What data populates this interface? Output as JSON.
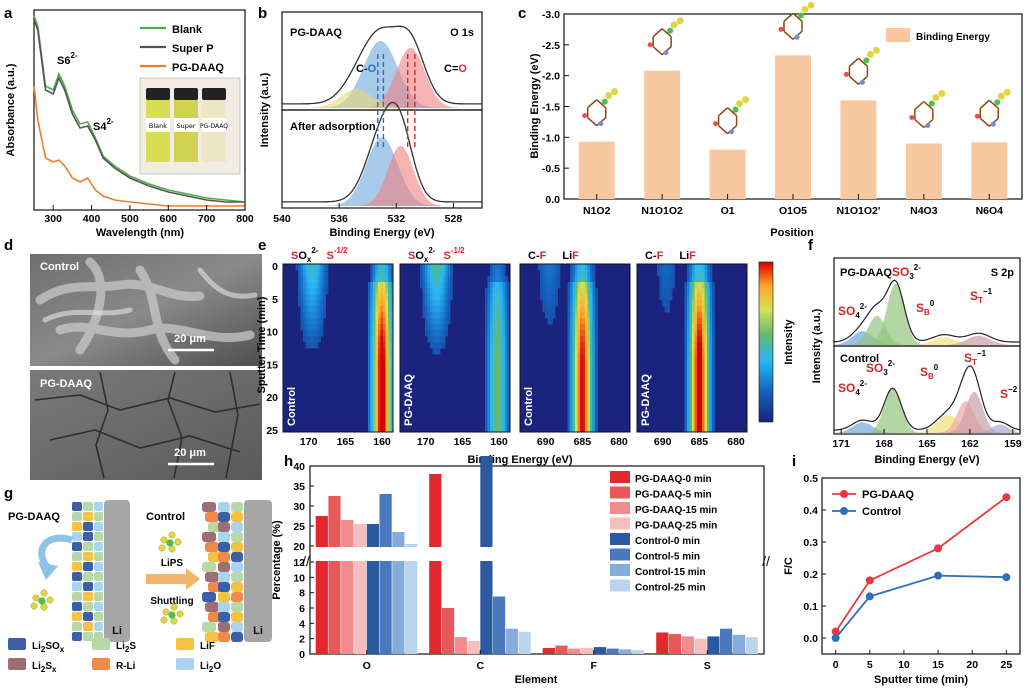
{
  "panel_labels": [
    "a",
    "b",
    "c",
    "d",
    "e",
    "f",
    "g",
    "h",
    "i"
  ],
  "chart_data": [
    {
      "id": "a",
      "type": "line",
      "xlabel": "Wavelength (nm)",
      "ylabel": "Absorbance (a.u.)",
      "xlim": [
        250,
        800
      ],
      "xticks": [
        300,
        400,
        500,
        600,
        700,
        800
      ],
      "annotations": [
        "S6",
        "2-",
        "S4",
        "2-"
      ],
      "legend": [
        "Blank",
        "Super P",
        "PG-DAAQ"
      ],
      "legend_colors": [
        "#4daf4a",
        "#555555",
        "#f07c2a"
      ],
      "vial_labels": [
        "Blank",
        "Super",
        "PG-DAAQ"
      ],
      "series": [
        {
          "name": "Blank",
          "x": [
            250,
            260,
            280,
            300,
            315,
            330,
            350,
            370,
            390,
            410,
            430,
            460,
            500,
            550,
            600,
            650,
            700,
            750,
            800
          ],
          "y": [
            0.97,
            0.92,
            0.62,
            0.6,
            0.68,
            0.62,
            0.5,
            0.43,
            0.44,
            0.36,
            0.27,
            0.22,
            0.17,
            0.13,
            0.1,
            0.08,
            0.06,
            0.05,
            0.04
          ]
        },
        {
          "name": "Super P",
          "x": [
            250,
            260,
            280,
            300,
            315,
            330,
            350,
            370,
            390,
            410,
            430,
            460,
            500,
            550,
            600,
            650,
            700,
            750,
            800
          ],
          "y": [
            0.95,
            0.9,
            0.6,
            0.58,
            0.66,
            0.6,
            0.48,
            0.41,
            0.42,
            0.35,
            0.26,
            0.21,
            0.16,
            0.12,
            0.09,
            0.07,
            0.05,
            0.04,
            0.04
          ]
        },
        {
          "name": "PG-DAAQ",
          "x": [
            250,
            260,
            280,
            300,
            315,
            330,
            350,
            370,
            390,
            410,
            430,
            460,
            500,
            550,
            600,
            650,
            700,
            750,
            800
          ],
          "y": [
            0.62,
            0.45,
            0.26,
            0.24,
            0.25,
            0.22,
            0.16,
            0.14,
            0.16,
            0.1,
            0.07,
            0.05,
            0.04,
            0.03,
            0.02,
            0.02,
            0.02,
            0.02,
            0.02
          ]
        }
      ]
    },
    {
      "id": "b",
      "type": "line",
      "title_left": "PG-DAAQ",
      "title_right": "O 1s",
      "lower_title": "After adsorption",
      "xlabel": "Binding Energy (eV)",
      "ylabel": "Intensity (a.u.)",
      "xlim": [
        540,
        526
      ],
      "xticks": [
        540,
        536,
        532,
        528
      ],
      "peak_labels": [
        "C-",
        "O",
        "C=",
        "O"
      ],
      "top_peaks": [
        {
          "name": "C-O",
          "center": 533.1,
          "height": 0.78,
          "width": 1.2,
          "color": "#6fa8dc"
        },
        {
          "name": "C=O",
          "center": 531.0,
          "height": 0.7,
          "width": 1.0,
          "color": "#f08080"
        },
        {
          "name": "other",
          "center": 534.8,
          "height": 0.22,
          "width": 1.1,
          "color": "#e8d870"
        }
      ],
      "bottom_peaks": [
        {
          "name": "C-O",
          "center": 533.0,
          "height": 0.8,
          "width": 1.1,
          "color": "#6fa8dc"
        },
        {
          "name": "C=O",
          "center": 531.7,
          "height": 0.7,
          "width": 0.9,
          "color": "#f08080"
        }
      ],
      "dashed_blue": [
        533.3,
        532.9
      ],
      "dashed_red": [
        531.2,
        530.7
      ]
    },
    {
      "id": "c",
      "type": "bar",
      "xlabel": "Position",
      "ylabel": "Binding Energy (eV)",
      "ylim": [
        -3.0,
        0.0
      ],
      "yticks": [
        -3.0,
        -2.5,
        -2.0,
        -1.5,
        -1.0,
        -0.5,
        0.0
      ],
      "legend": [
        "Binding Energy"
      ],
      "bar_color": "#f8c9a0",
      "categories": [
        "N1O2",
        "N1O1O2",
        "O1",
        "O1O5",
        "N1O1O2'",
        "N4O3",
        "N6O4"
      ],
      "values": [
        -0.93,
        -2.08,
        -0.8,
        -2.33,
        -1.6,
        -0.9,
        -0.92
      ]
    },
    {
      "id": "d",
      "type": "image",
      "labels": [
        "Control",
        "PG-DAAQ"
      ],
      "scalebars": [
        "20 μm",
        "20 μm"
      ]
    },
    {
      "id": "e",
      "type": "heatmap",
      "ylabel": "Sputter Time (min)",
      "xlabel": "Binding Energy (eV)",
      "colorbar_label": "Intensity",
      "yticks": [
        0,
        5,
        10,
        15,
        20,
        25
      ],
      "maps": [
        {
          "name": "Control",
          "xticks": [
            170,
            165,
            160
          ],
          "top": [
            "S",
            "O",
            "x",
            "2-",
            "S",
            "-1/2"
          ],
          "peaks": [
            {
              "at": 160,
              "strength": 1.0
            },
            {
              "at": 169.5,
              "strength": 0.35
            }
          ]
        },
        {
          "name": "PG-DAAQ",
          "xticks": [
            170,
            165,
            160
          ],
          "top": [
            "S",
            "O",
            "x",
            "2-",
            "S",
            "-1/2"
          ],
          "peaks": [
            {
              "at": 160.2,
              "strength": 0.45
            },
            {
              "at": 168.5,
              "strength": 0.4
            }
          ]
        },
        {
          "name": "Control",
          "xticks": [
            690,
            685,
            680
          ],
          "top": [
            "C-",
            "F",
            "Li",
            "F"
          ],
          "peaks": [
            {
              "at": 685,
              "strength": 0.95
            },
            {
              "at": 689.5,
              "strength": 0.15
            }
          ]
        },
        {
          "name": "PG-DAAQ",
          "xticks": [
            690,
            685,
            680
          ],
          "top": [
            "C-",
            "F",
            "Li",
            "F"
          ],
          "peaks": [
            {
              "at": 685,
              "strength": 1.0
            },
            {
              "at": 689.5,
              "strength": 0.12
            }
          ]
        }
      ]
    },
    {
      "id": "f",
      "type": "line",
      "ylabel": "Intensity (a.u.)",
      "xlabel": "Binding Energy (eV)",
      "xlim": [
        171.5,
        158.5
      ],
      "xticks": [
        171,
        168,
        165,
        162,
        159
      ],
      "top_title_left": "PG-DAAQ",
      "top_title_right": "S 2p",
      "bottom_title": "Control",
      "labels": {
        "so4": "SO",
        "so4_sub": "4",
        "so4_sup": "2-",
        "so3": "SO",
        "so3_sub": "3",
        "so3_sup": "2-",
        "sb": "S",
        "sb_sub": "B",
        "sb_sup": "0",
        "st": "S",
        "st_sub": "T",
        "st_sup": "−1",
        "s2": "S",
        "s2_sup": "−2"
      },
      "top_peaks": [
        {
          "center": 169.5,
          "height": 0.18,
          "width": 0.7,
          "color": "#6fa8dc"
        },
        {
          "center": 168.5,
          "height": 0.38,
          "width": 0.6,
          "color": "#93c47d"
        },
        {
          "center": 167.2,
          "height": 0.8,
          "width": 0.6,
          "color": "#93c47d"
        },
        {
          "center": 163.8,
          "height": 0.1,
          "width": 0.8,
          "color": "#f4e07a"
        },
        {
          "center": 161.4,
          "height": 0.12,
          "width": 0.8,
          "color": "#c9a0a6"
        }
      ],
      "bottom_peaks": [
        {
          "center": 169.5,
          "height": 0.15,
          "width": 0.7,
          "color": "#6fa8dc"
        },
        {
          "center": 167.4,
          "height": 0.62,
          "width": 0.6,
          "color": "#93c47d"
        },
        {
          "center": 163.5,
          "height": 0.25,
          "width": 0.8,
          "color": "#f4e07a"
        },
        {
          "center": 162.3,
          "height": 0.45,
          "width": 0.6,
          "color": "#f2a6a6"
        },
        {
          "center": 161.7,
          "height": 0.58,
          "width": 0.6,
          "color": "#c9a0a6"
        },
        {
          "center": 159.9,
          "height": 0.12,
          "width": 0.6,
          "color": "#b4a7d6"
        }
      ]
    },
    {
      "id": "g",
      "type": "schematic",
      "left_label": "PG-DAAQ",
      "right_label": "Control",
      "arrow_label_1": "LiPS",
      "arrow_label_2": "Shuttling",
      "electrode": "Li",
      "legend": [
        {
          "label": "Li",
          "sub": "2",
          "tail": "SO",
          "sub2": "x",
          "color": "#3d5fa8"
        },
        {
          "label": "Li",
          "sub": "2",
          "tail": "S",
          "sub2": "",
          "color": "#b7d9a8"
        },
        {
          "label": "LiF",
          "sub": "",
          "tail": "",
          "sub2": "",
          "color": "#f5c242"
        },
        {
          "label": "Li",
          "sub": "2",
          "tail": "S",
          "sub2": "x",
          "color": "#9c6f74"
        },
        {
          "label": "R-Li",
          "sub": "",
          "tail": "",
          "sub2": "",
          "color": "#ef8a48"
        },
        {
          "label": "Li",
          "sub": "2",
          "tail": "O",
          "sub2": "",
          "color": "#a8d4ef"
        }
      ]
    },
    {
      "id": "h",
      "type": "bar",
      "xlabel": "Element",
      "ylabel": "Percentage (%)",
      "categories": [
        "O",
        "C",
        "F",
        "S"
      ],
      "yticks_low": [
        0,
        2,
        4,
        6,
        8,
        10,
        12
      ],
      "yticks_high": [
        20,
        25,
        30,
        35,
        40
      ],
      "break_between": [
        12,
        20
      ],
      "series": [
        {
          "name": "PG-DAAQ-0 min",
          "color": "#e0282e",
          "values": [
            27.5,
            38.0,
            0.8,
            2.8
          ]
        },
        {
          "name": "PG-DAAQ-5 min",
          "color": "#e8595a",
          "values": [
            32.5,
            6.0,
            1.1,
            2.6
          ]
        },
        {
          "name": "PG-DAAQ-15 min",
          "color": "#f08c8a",
          "values": [
            26.5,
            2.2,
            0.7,
            2.3
          ]
        },
        {
          "name": "PG-DAAQ-25 min",
          "color": "#f6bfbd",
          "values": [
            25.5,
            1.7,
            0.8,
            2.0
          ]
        },
        {
          "name": "Control-0 min",
          "color": "#2b5aa0",
          "values": [
            25.5,
            42.5,
            0.9,
            2.3
          ]
        },
        {
          "name": "Control-5 min",
          "color": "#4a78bd",
          "values": [
            33.0,
            7.5,
            0.7,
            3.3
          ]
        },
        {
          "name": "Control-15 min",
          "color": "#86acdb",
          "values": [
            23.5,
            3.3,
            0.6,
            2.5
          ]
        },
        {
          "name": "Control-25 min",
          "color": "#bcd5ee",
          "values": [
            20.5,
            2.9,
            0.5,
            2.2
          ]
        }
      ]
    },
    {
      "id": "i",
      "type": "line",
      "xlabel": "Sputter time (min)",
      "ylabel": "F/C",
      "xlim": [
        -2,
        27
      ],
      "ylim": [
        -0.05,
        0.5
      ],
      "xticks": [
        0,
        5,
        10,
        15,
        20,
        25
      ],
      "yticks": [
        0.0,
        0.1,
        0.2,
        0.3,
        0.4,
        0.5
      ],
      "series": [
        {
          "name": "PG-DAAQ",
          "color": "#e8383d",
          "x": [
            0,
            5,
            15,
            25
          ],
          "y": [
            0.02,
            0.18,
            0.28,
            0.44
          ]
        },
        {
          "name": "Control",
          "color": "#2e6fba",
          "x": [
            0,
            5,
            15,
            25
          ],
          "y": [
            0.0,
            0.13,
            0.195,
            0.19
          ]
        }
      ]
    }
  ]
}
